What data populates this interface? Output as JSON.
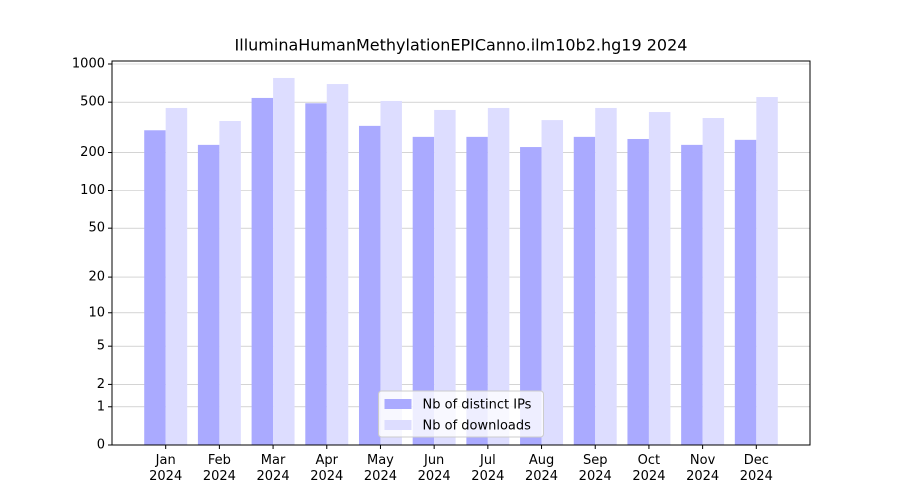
{
  "chart_data": {
    "type": "bar",
    "title": "IlluminaHumanMethylationEPICanno.ilm10b2.hg19 2024",
    "categories": [
      "Jan\n2024",
      "Feb\n2024",
      "Mar\n2024",
      "Apr\n2024",
      "May\n2024",
      "Jun\n2024",
      "Jul\n2024",
      "Aug\n2024",
      "Sep\n2024",
      "Oct\n2024",
      "Nov\n2024",
      "Dec\n2024"
    ],
    "series": [
      {
        "name": "Nb of distinct IPs",
        "color": "#aaaaff",
        "values": [
          300,
          230,
          540,
          490,
          325,
          266,
          266,
          221,
          266,
          256,
          230,
          252
        ]
      },
      {
        "name": "Nb of downloads",
        "color": "#ddddff",
        "values": [
          450,
          355,
          776,
          695,
          511,
          434,
          450,
          361,
          450,
          418,
          375,
          549
        ]
      }
    ],
    "scale": "log1p",
    "ylim": [
      0,
      1056
    ],
    "yticks": [
      0,
      1,
      2,
      5,
      10,
      20,
      50,
      100,
      200,
      500,
      1000
    ],
    "grid": true,
    "legend": "lower center"
  }
}
